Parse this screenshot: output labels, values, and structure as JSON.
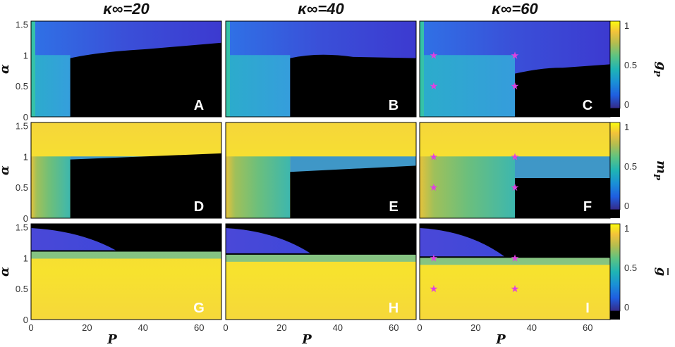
{
  "chart_data": {
    "type": "heatmap",
    "col_titles": [
      "κ∞=20",
      "κ∞=40",
      "κ∞=60"
    ],
    "xlabel": "P",
    "ylabel": "α",
    "xlim": [
      0,
      68
    ],
    "ylim": [
      0,
      1.55
    ],
    "xticks": [
      "0",
      "20",
      "40",
      "60"
    ],
    "yticks": [
      "0",
      "0.5",
      "1",
      "1.5"
    ],
    "colormap": "parula",
    "no_solution_color": "#000000",
    "rows": [
      {
        "colorbar_label": "g",
        "colorbar_sub": "P",
        "colorbar_overbar": false,
        "colorbar_ticks": [
          "1",
          "0.5",
          "0"
        ],
        "panels": [
          {
            "letter": "A",
            "kappa": 20,
            "black_region": {
              "p_start": 14,
              "alpha_top_start": 0.95,
              "alpha_top_end": 1.2
            },
            "markers": []
          },
          {
            "letter": "B",
            "kappa": 40,
            "black_region": {
              "p_start": 23,
              "alpha_top_start": 0.95,
              "alpha_top_end": 0.95
            },
            "markers": []
          },
          {
            "letter": "C",
            "kappa": 60,
            "black_region": {
              "p_start": 34,
              "alpha_top_start": 0.7,
              "alpha_top_end": 0.85
            },
            "markers": [
              {
                "p": 5,
                "alpha": 1.0
              },
              {
                "p": 5,
                "alpha": 0.5
              },
              {
                "p": 34,
                "alpha": 1.0
              },
              {
                "p": 34,
                "alpha": 0.5
              }
            ]
          }
        ]
      },
      {
        "colorbar_label": "m",
        "colorbar_sub": "P",
        "colorbar_overbar": false,
        "colorbar_ticks": [
          "1",
          "0.5",
          "0"
        ],
        "panels": [
          {
            "letter": "D",
            "kappa": 20,
            "black_region": {
              "p_start": 14,
              "alpha_top_start": 0.95,
              "alpha_top_end": 1.05
            },
            "markers": []
          },
          {
            "letter": "E",
            "kappa": 40,
            "black_region": {
              "p_start": 23,
              "alpha_top_start": 0.75,
              "alpha_top_end": 0.85
            },
            "markers": []
          },
          {
            "letter": "F",
            "kappa": 60,
            "black_region": {
              "p_start": 34,
              "alpha_top_start": 0.65,
              "alpha_top_end": 0.65
            },
            "markers": [
              {
                "p": 5,
                "alpha": 1.0
              },
              {
                "p": 5,
                "alpha": 0.5
              },
              {
                "p": 34,
                "alpha": 1.0
              },
              {
                "p": 34,
                "alpha": 0.5
              }
            ]
          }
        ]
      },
      {
        "colorbar_label": "g",
        "colorbar_sub": "",
        "colorbar_overbar": true,
        "colorbar_ticks": [
          "1",
          "0.5",
          "0"
        ],
        "panels": [
          {
            "letter": "G",
            "kappa": 20,
            "black_region": {
              "alpha_bottom": 1.1
            },
            "markers": []
          },
          {
            "letter": "H",
            "kappa": 40,
            "black_region": {
              "alpha_bottom": 1.05
            },
            "markers": []
          },
          {
            "letter": "I",
            "kappa": 60,
            "black_region": {
              "alpha_bottom": 1.0
            },
            "markers": [
              {
                "p": 5,
                "alpha": 1.0
              },
              {
                "p": 5,
                "alpha": 0.5
              },
              {
                "p": 34,
                "alpha": 1.0
              },
              {
                "p": 34,
                "alpha": 0.5
              }
            ]
          }
        ]
      }
    ],
    "marker_color": "#e040e0"
  }
}
